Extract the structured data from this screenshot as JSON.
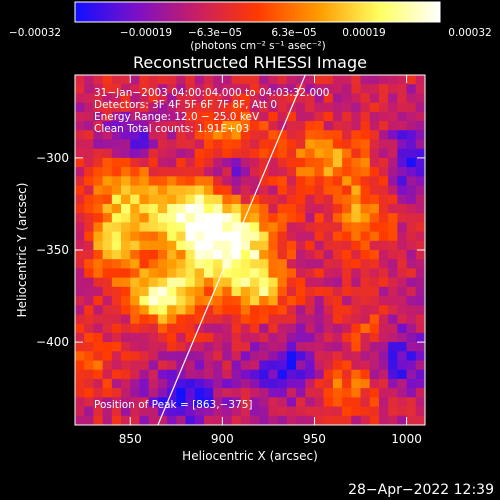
{
  "chart_data": {
    "type": "heatmap",
    "title": "Reconstructed RHESSI Image",
    "xlabel": "Heliocentric X (arcsec)",
    "ylabel": "Heliocentric Y (arcsec)",
    "xlim": [
      820,
      1010
    ],
    "ylim": [
      -445,
      -255
    ],
    "x_ticks": [
      850,
      900,
      950,
      1000
    ],
    "x_tick_labels": [
      "850",
      "900",
      "950",
      "1000"
    ],
    "y_ticks": [
      -300,
      -350,
      -400
    ],
    "y_tick_labels": [
      "−300",
      "−350",
      "−400"
    ],
    "colorbar": {
      "range": [
        -0.00032,
        0.00032
      ],
      "tick_labels": [
        "−0.00032",
        "−0.00019",
        "−6.3e−05",
        "6.3e−05",
        "0.00019",
        "0.00032"
      ],
      "unit_label": "(photons cm⁻² s⁻¹ asec⁻²)",
      "colors": [
        "#1010ff",
        "#7a10c8",
        "#c81e64",
        "#ff3a00",
        "#ff9a00",
        "#ffff60",
        "#ffffff"
      ]
    },
    "annotations": [
      "31−Jan−2003 04:00:04.000 to 04:03:32.000",
      "Detectors: 3F 4F 5F 6F 7F 8F, Att 0",
      "Energy Range: 12.0 − 25.0 keV",
      "Clean     Total counts: 1.91E+03"
    ],
    "peak_label": "Position of Peak = [863,−375]",
    "peak": [
      863,
      -375
    ],
    "limb_line": {
      "from": [
        865,
        -445
      ],
      "to": [
        945,
        -255
      ]
    },
    "hotspots": [
      {
        "x": 903,
        "y": -348,
        "amp": 1.0,
        "sx": 18,
        "sy": 16
      },
      {
        "x": 868,
        "y": -375,
        "amp": 0.9,
        "sx": 12,
        "sy": 10
      },
      {
        "x": 880,
        "y": -330,
        "amp": 0.72,
        "sx": 14,
        "sy": 12
      },
      {
        "x": 848,
        "y": -320,
        "amp": 0.6,
        "sx": 12,
        "sy": 14
      },
      {
        "x": 842,
        "y": -350,
        "amp": 0.55,
        "sx": 10,
        "sy": 12
      },
      {
        "x": 920,
        "y": -372,
        "amp": 0.55,
        "sx": 10,
        "sy": 10
      },
      {
        "x": 955,
        "y": -300,
        "amp": 0.45,
        "sx": 18,
        "sy": 10
      },
      {
        "x": 975,
        "y": -330,
        "amp": 0.45,
        "sx": 12,
        "sy": 16
      },
      {
        "x": 985,
        "y": -395,
        "amp": 0.35,
        "sx": 12,
        "sy": 10
      },
      {
        "x": 965,
        "y": -425,
        "amp": 0.4,
        "sx": 16,
        "sy": 8
      },
      {
        "x": 905,
        "y": -285,
        "amp": 0.35,
        "sx": 14,
        "sy": 8
      },
      {
        "x": 830,
        "y": -410,
        "amp": 0.35,
        "sx": 8,
        "sy": 10
      }
    ],
    "coldspots": [
      {
        "x": 880,
        "y": -430,
        "amp": -0.55,
        "sx": 14,
        "sy": 10
      },
      {
        "x": 995,
        "y": -405,
        "amp": -0.55,
        "sx": 10,
        "sy": 14
      },
      {
        "x": 850,
        "y": -290,
        "amp": -0.4,
        "sx": 10,
        "sy": 8
      },
      {
        "x": 935,
        "y": -415,
        "amp": -0.45,
        "sx": 14,
        "sy": 12
      },
      {
        "x": 1000,
        "y": -300,
        "amp": -0.4,
        "sx": 8,
        "sy": 16
      },
      {
        "x": 910,
        "y": -310,
        "amp": -0.3,
        "sx": 8,
        "sy": 8
      }
    ]
  },
  "footer": {
    "timestamp": "28−Apr−2022 12:39"
  }
}
